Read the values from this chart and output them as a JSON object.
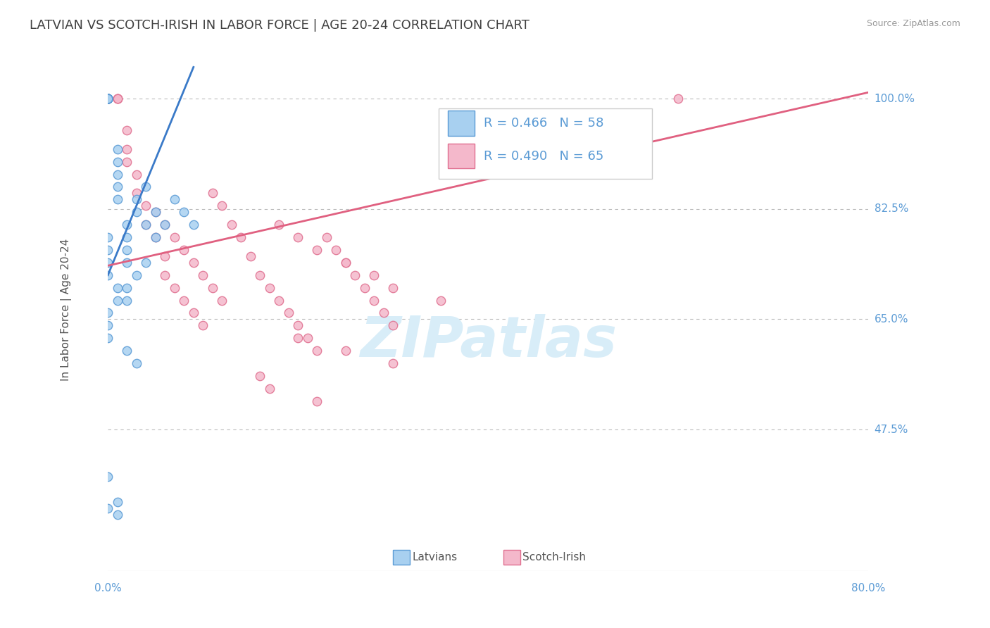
{
  "title": "LATVIAN VS SCOTCH-IRISH IN LABOR FORCE | AGE 20-24 CORRELATION CHART",
  "source_text": "Source: ZipAtlas.com",
  "ylabel": "In Labor Force | Age 20-24",
  "xlim": [
    0.0,
    0.8
  ],
  "ylim": [
    0.25,
    1.08
  ],
  "ytick_vals": [
    0.475,
    0.65,
    0.825,
    1.0
  ],
  "ytick_labels": [
    "47.5%",
    "65.0%",
    "82.5%",
    "100.0%"
  ],
  "xtick_labels": [
    "0.0%",
    "80.0%"
  ],
  "legend_r_latvian": "R = 0.466",
  "legend_n_latvian": "N = 58",
  "legend_r_scotch": "R = 0.490",
  "legend_n_scotch": "N = 65",
  "legend_label_latvian": "Latvians",
  "legend_label_scotch": "Scotch-Irish",
  "color_latvian_fill": "#A8D0F0",
  "color_latvian_edge": "#5B9BD5",
  "color_scotch_fill": "#F4B8CB",
  "color_scotch_edge": "#E07090",
  "color_trend_latvian": "#3A7AC8",
  "color_trend_scotch": "#E06080",
  "color_axis_labels": "#5B9BD5",
  "color_title": "#404040",
  "watermark_color": "#D8EDF8",
  "background_color": "#FFFFFF",
  "grid_color": "#BBBBBB",
  "latvian_x": [
    0.0,
    0.0,
    0.0,
    0.0,
    0.0,
    0.0,
    0.0,
    0.0,
    0.0,
    0.0,
    0.0,
    0.0,
    0.0,
    0.0,
    0.0,
    0.0,
    0.0,
    0.0,
    0.0,
    0.0,
    0.01,
    0.01,
    0.01,
    0.01,
    0.01,
    0.02,
    0.02,
    0.02,
    0.02,
    0.03,
    0.03,
    0.04,
    0.04,
    0.05,
    0.05,
    0.06,
    0.07,
    0.08,
    0.09,
    0.02,
    0.02,
    0.03,
    0.04,
    0.0,
    0.0,
    0.0,
    0.0,
    0.01,
    0.01,
    0.0,
    0.0,
    0.0,
    0.02,
    0.03,
    0.0,
    0.0,
    0.01,
    0.01
  ],
  "latvian_y": [
    1.0,
    1.0,
    1.0,
    1.0,
    1.0,
    1.0,
    1.0,
    1.0,
    1.0,
    1.0,
    1.0,
    1.0,
    1.0,
    1.0,
    1.0,
    1.0,
    1.0,
    1.0,
    1.0,
    1.0,
    0.92,
    0.9,
    0.88,
    0.86,
    0.84,
    0.78,
    0.76,
    0.74,
    0.8,
    0.82,
    0.84,
    0.86,
    0.8,
    0.78,
    0.82,
    0.8,
    0.84,
    0.82,
    0.8,
    0.68,
    0.7,
    0.72,
    0.74,
    0.78,
    0.76,
    0.74,
    0.72,
    0.7,
    0.68,
    0.66,
    0.64,
    0.62,
    0.6,
    0.58,
    0.4,
    0.35,
    0.36,
    0.34
  ],
  "scotch_x": [
    0.0,
    0.0,
    0.0,
    0.0,
    0.0,
    0.0,
    0.01,
    0.01,
    0.01,
    0.02,
    0.02,
    0.02,
    0.03,
    0.03,
    0.04,
    0.04,
    0.05,
    0.06,
    0.06,
    0.07,
    0.08,
    0.09,
    0.1,
    0.11,
    0.12,
    0.13,
    0.14,
    0.15,
    0.16,
    0.17,
    0.18,
    0.19,
    0.2,
    0.21,
    0.22,
    0.23,
    0.24,
    0.25,
    0.26,
    0.27,
    0.28,
    0.29,
    0.3,
    0.05,
    0.06,
    0.07,
    0.08,
    0.09,
    0.1,
    0.11,
    0.12,
    0.18,
    0.2,
    0.22,
    0.25,
    0.28,
    0.3,
    0.35,
    0.2,
    0.25,
    0.3,
    0.16,
    0.17,
    0.22,
    0.6
  ],
  "scotch_y": [
    1.0,
    1.0,
    1.0,
    1.0,
    1.0,
    1.0,
    1.0,
    1.0,
    1.0,
    0.95,
    0.92,
    0.9,
    0.88,
    0.85,
    0.83,
    0.8,
    0.78,
    0.75,
    0.72,
    0.7,
    0.68,
    0.66,
    0.64,
    0.85,
    0.83,
    0.8,
    0.78,
    0.75,
    0.72,
    0.7,
    0.68,
    0.66,
    0.64,
    0.62,
    0.6,
    0.78,
    0.76,
    0.74,
    0.72,
    0.7,
    0.68,
    0.66,
    0.64,
    0.82,
    0.8,
    0.78,
    0.76,
    0.74,
    0.72,
    0.7,
    0.68,
    0.8,
    0.78,
    0.76,
    0.74,
    0.72,
    0.7,
    0.68,
    0.62,
    0.6,
    0.58,
    0.56,
    0.54,
    0.52,
    1.0
  ],
  "trend_latvian_x0": 0.0,
  "trend_latvian_y0": 0.72,
  "trend_latvian_x1": 0.09,
  "trend_latvian_y1": 1.05,
  "trend_scotch_x0": 0.0,
  "trend_scotch_y0": 0.735,
  "trend_scotch_x1": 0.8,
  "trend_scotch_y1": 1.01,
  "title_fontsize": 13,
  "axis_label_fontsize": 11,
  "tick_fontsize": 11,
  "legend_fontsize": 13,
  "marker_size": 80
}
